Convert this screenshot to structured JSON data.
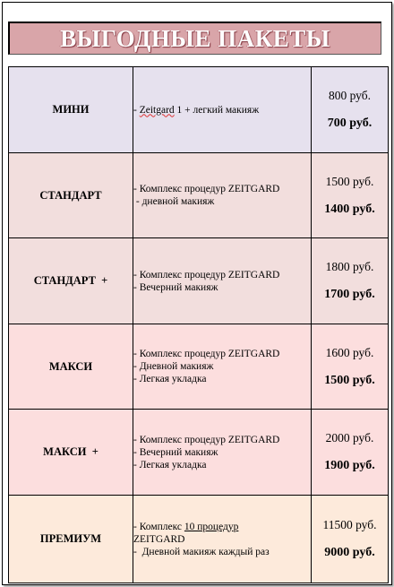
{
  "banner": {
    "title": "ВЫГОДНЫЕ ПАКЕТЫ"
  },
  "colors": {
    "banner_bg": "#d9a5a9",
    "row_mini": "#e6e1ee",
    "row_standart": "#f2dedd",
    "row_maxi": "#fcdede",
    "row_premium": "#fdeadb"
  },
  "packages": [
    {
      "name": "МИНИ",
      "lines": [
        "- Zeitgard 1 + легкий макияж"
      ],
      "old_price": "800 руб.",
      "new_price": "700 руб."
    },
    {
      "name": "СТАНДАРТ",
      "lines": [
        "- Комплекс процедур ZEITGARD",
        " - дневной макияж"
      ],
      "old_price": "1500 руб.",
      "new_price": "1400 руб."
    },
    {
      "name": "СТАНДАРТ  +",
      "lines": [
        "- Комплекс процедур ZEITGARD",
        "- Вечерний макияж"
      ],
      "old_price": "1800 руб.",
      "new_price": "1700 руб."
    },
    {
      "name": "МАКСИ",
      "lines": [
        "- Комплекс процедур ZEITGARD",
        "- Дневной макияж",
        "- Легкая укладка"
      ],
      "old_price": "1600 руб.",
      "new_price": "1500 руб."
    },
    {
      "name": "МАКСИ  +",
      "lines": [
        "- Комплекс процедур ZEITGARD",
        "- Вечерний макияж",
        "- Легкая укладка"
      ],
      "old_price": "2000 руб.",
      "new_price": "1900 руб."
    },
    {
      "name": "ПРЕМИУМ",
      "lines": [
        "- Комплекс 10  процедур",
        "ZEITGARD",
        "-  Дневной макияж каждый раз"
      ],
      "old_price": "11500 руб.",
      "new_price": "9000 руб."
    }
  ]
}
